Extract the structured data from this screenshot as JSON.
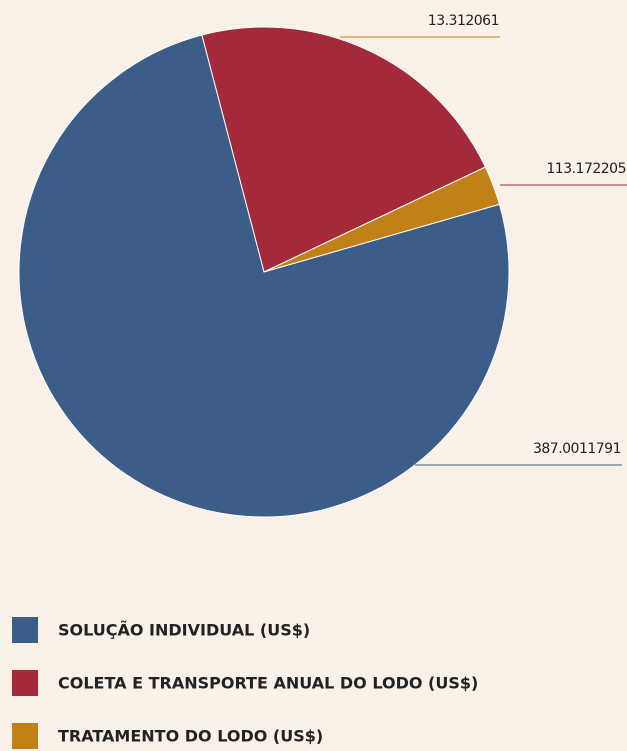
{
  "chart_data": {
    "type": "pie",
    "categories": [
      "SOLUÇÃO INDIVIDUAL (US$)",
      "COLETA E TRANSPORTE ANUAL DO LODO (US$)",
      "TRATAMENTO DO LODO (US$)"
    ],
    "values": [
      387.0011791,
      113.172205,
      13.312061
    ],
    "value_labels": [
      "387.0011791",
      "113.172205",
      "13.312061"
    ],
    "colors": [
      "#3d5d89",
      "#a3293b",
      "#c28019"
    ]
  }
}
